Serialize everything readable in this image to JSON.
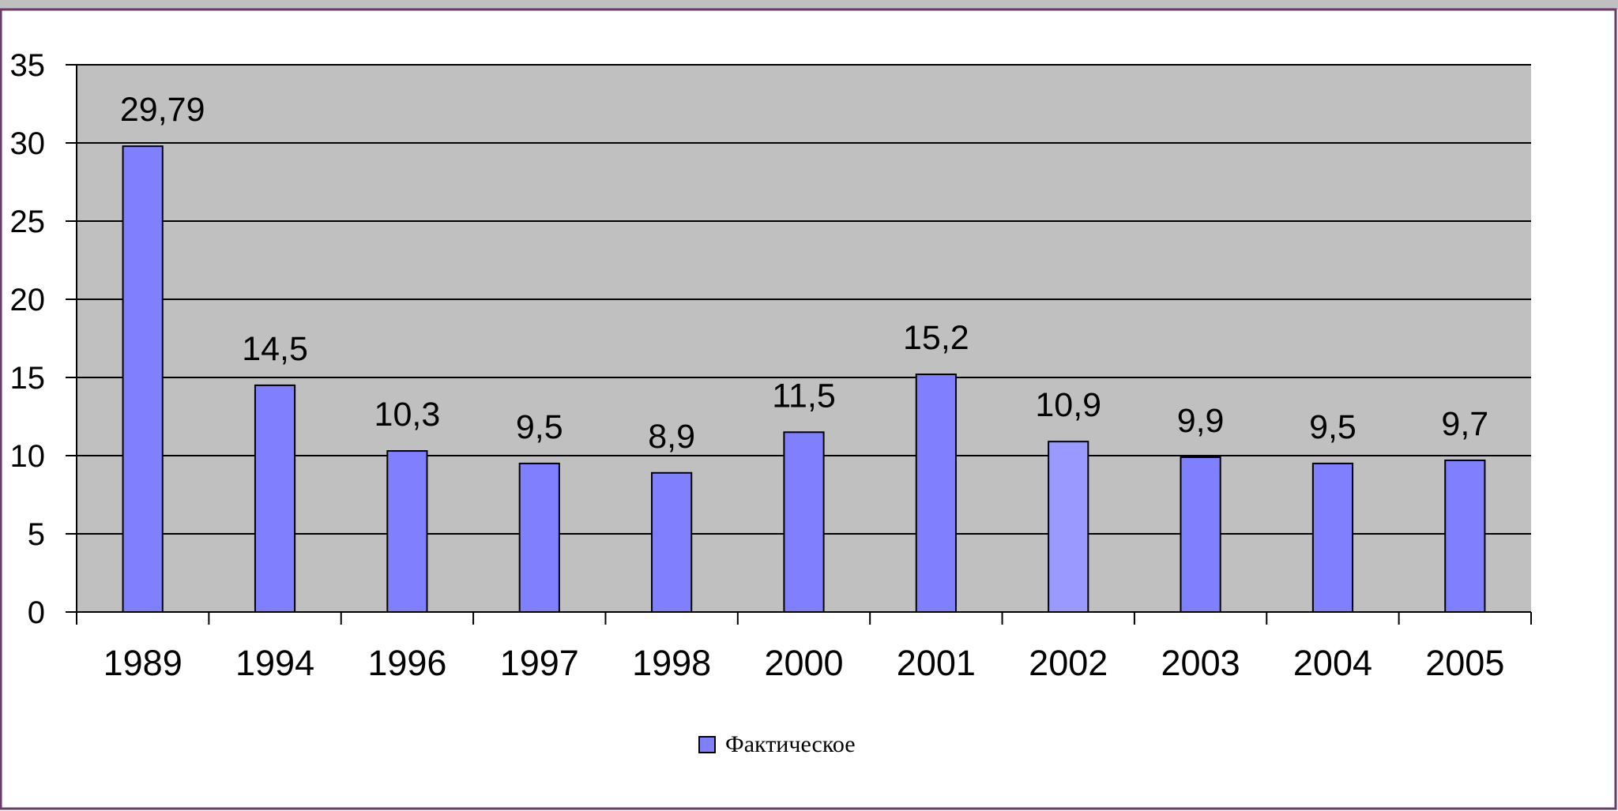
{
  "colors": {
    "plot_background": "#c0c0c0",
    "bar": "#8080ff",
    "bar_highlight": "#9999ff",
    "bar_border": "#000000",
    "grid": "#000000",
    "top_band": "#c0c0c0",
    "frame_border": "#6b3a6b"
  },
  "chart_data": {
    "type": "bar",
    "categories": [
      "1989",
      "1994",
      "1996",
      "1997",
      "1998",
      "2000",
      "2001",
      "2002",
      "2003",
      "2004",
      "2005"
    ],
    "series": [
      {
        "name": "Фактическое",
        "values": [
          29.79,
          14.5,
          10.3,
          9.5,
          8.9,
          11.5,
          15.2,
          10.9,
          9.9,
          9.5,
          9.7
        ],
        "labels": [
          "29,79",
          "14,5",
          "10,3",
          "9,5",
          "8,9",
          "11,5",
          "15,2",
          "10,9",
          "9,9",
          "9,5",
          "9,7"
        ]
      }
    ],
    "highlight_index": 7,
    "ylim": [
      0,
      35
    ],
    "yticks": [
      "0",
      "5",
      "10",
      "15",
      "20",
      "25",
      "30",
      "35"
    ],
    "ytick_values": [
      0,
      5,
      10,
      15,
      20,
      25,
      30,
      35
    ],
    "grid": true,
    "legend": {
      "position": "bottom-center",
      "entries": [
        "Фактическое"
      ]
    }
  }
}
